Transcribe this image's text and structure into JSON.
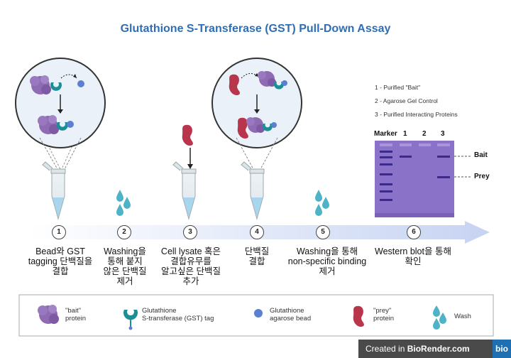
{
  "title": "Glutathione S-Transferase (GST) Pull-Down Assay",
  "notes": [
    "1 -  Purified \"Bait\"",
    "2 - Agarose Gel Control",
    "3 - Purified Interacting Proteins"
  ],
  "gel": {
    "lane_labels": [
      "Marker",
      "1",
      "2",
      "3"
    ],
    "band_labels": [
      "Bait",
      "Prey"
    ]
  },
  "steps": [
    {
      "number": "1",
      "lines": [
        "Bead와 GST",
        "tagging 단백질을",
        "결합"
      ]
    },
    {
      "number": "2",
      "lines": [
        "Washing을",
        "통해 붙지",
        "않은 단백질",
        "제거"
      ]
    },
    {
      "number": "3",
      "lines": [
        "Cell lysate 혹은",
        "결합유무를",
        "알고싶은 단백질",
        "추가"
      ]
    },
    {
      "number": "4",
      "lines": [
        "단백질",
        "결합"
      ]
    },
    {
      "number": "5",
      "lines": [
        "Washing을 통해",
        "non-specific binding",
        "제거"
      ]
    },
    {
      "number": "6",
      "lines": [
        "Western blot을 통해",
        "확인"
      ]
    }
  ],
  "legend": {
    "bait": [
      "\"bait\"",
      "protein"
    ],
    "gst": [
      "Glutathione",
      "S-transferase (GST) tag"
    ],
    "bead": [
      "Glutathione",
      "agarose bead"
    ],
    "prey": [
      "\"prey\"",
      "protein"
    ],
    "wash": "Wash"
  },
  "credit": {
    "text_prefix": "Created in ",
    "text_brand": "BioRender.com",
    "logo": "bio"
  },
  "colors": {
    "title": "#2f6db5",
    "bait": "#8e6bb3",
    "gst": "#1a8f96",
    "bead": "#5b7fd1",
    "prey": "#b8354b",
    "wash": "#4fb3c7",
    "gel": "#8a72c8"
  }
}
